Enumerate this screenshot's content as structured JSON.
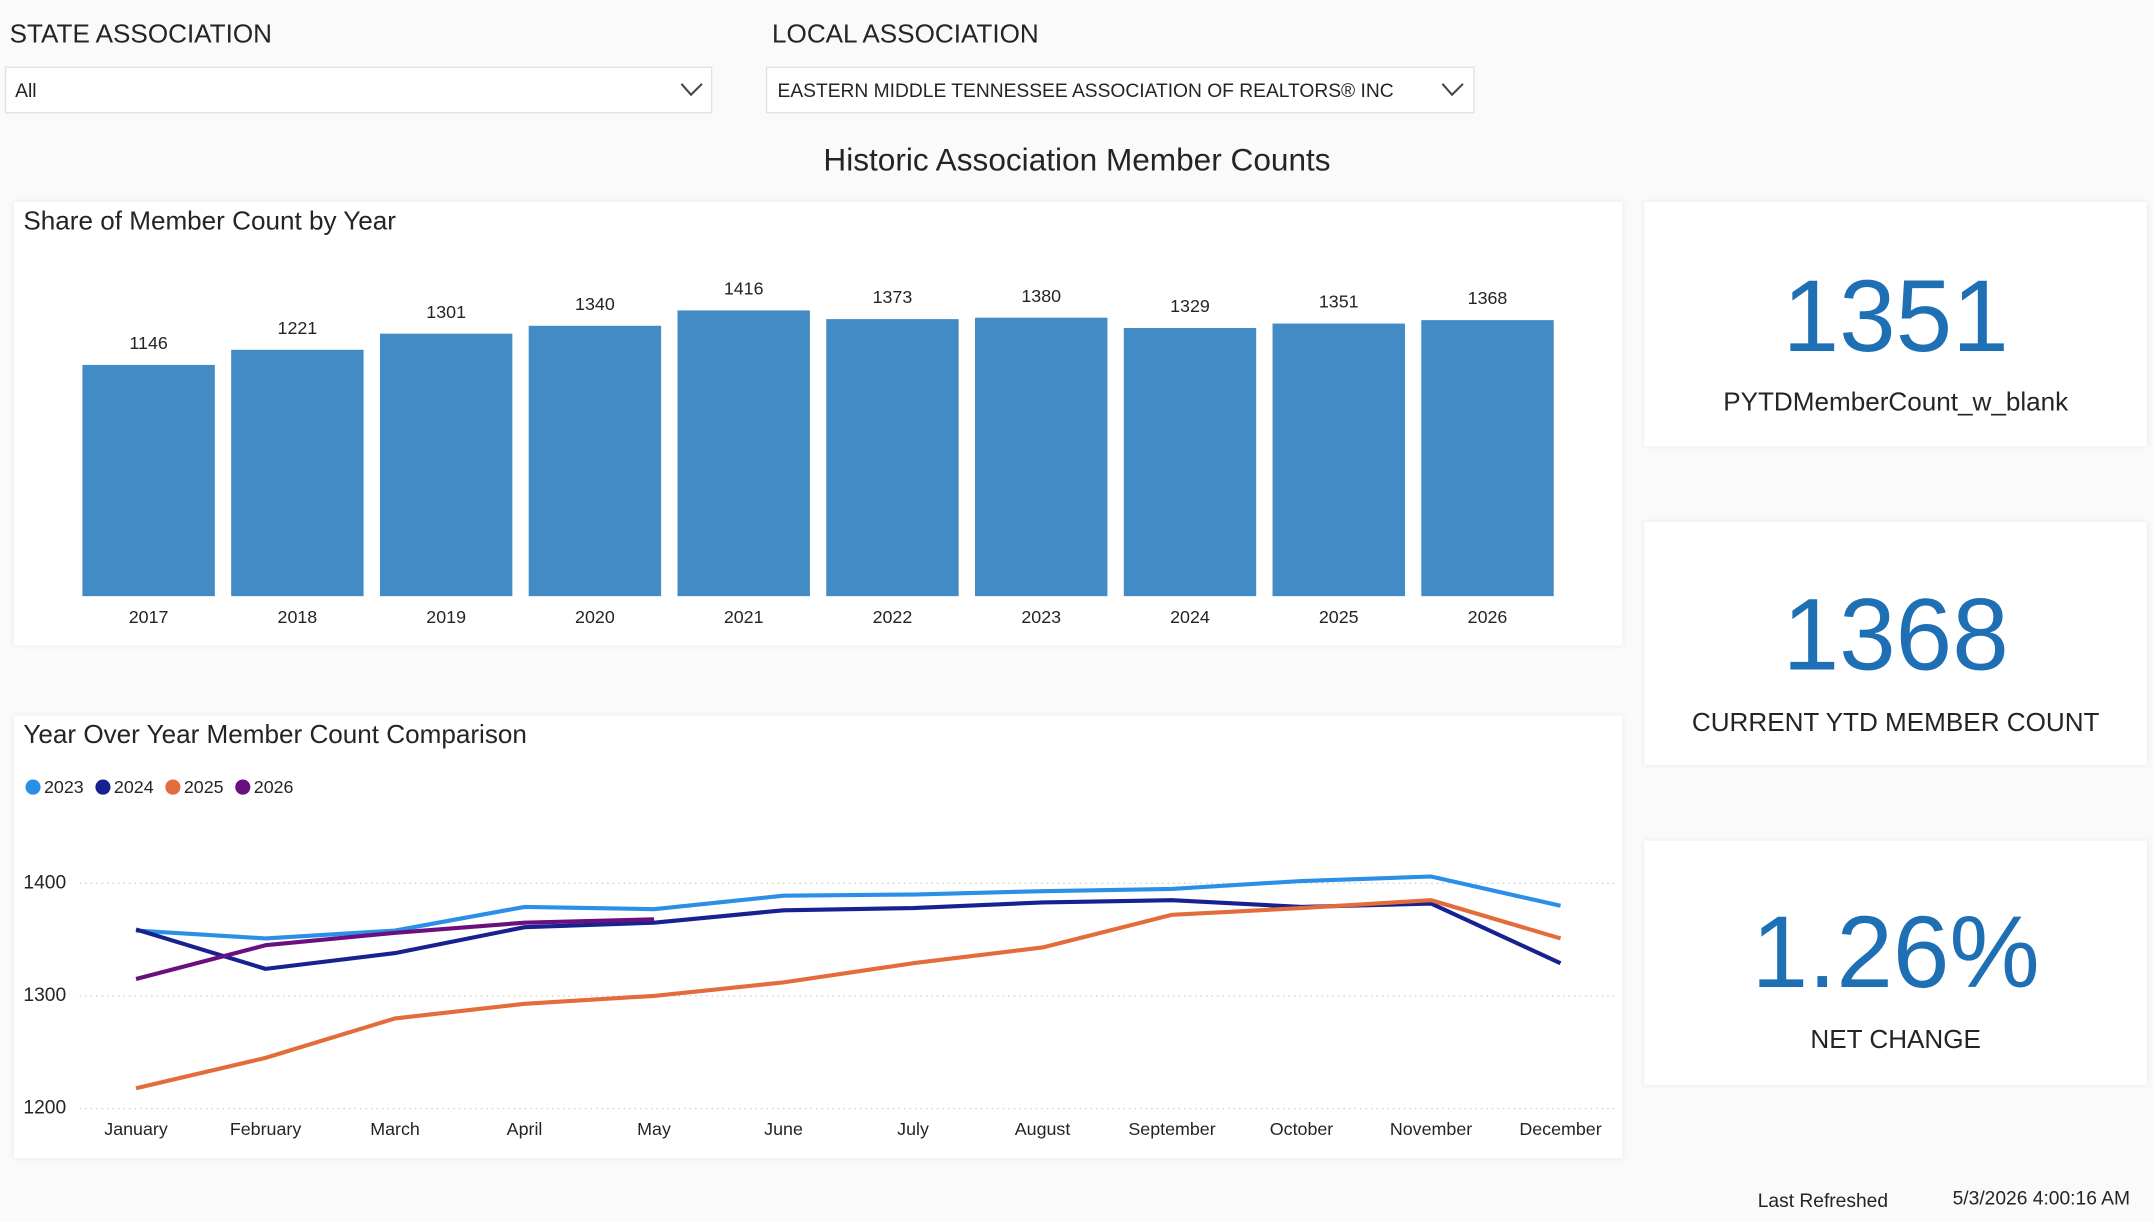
{
  "filters": [
    {
      "label": "STATE ASSOCIATION",
      "value": "All"
    },
    {
      "label": "LOCAL ASSOCIATION",
      "value": "EASTERN MIDDLE TENNESSEE ASSOCIATION OF REALTORS® INC"
    }
  ],
  "header": {
    "title": "Historic Association Member Counts"
  },
  "chart_data": [
    {
      "type": "bar",
      "title": "Share of Member Count by Year",
      "categories": [
        "2017",
        "2018",
        "2019",
        "2020",
        "2021",
        "2022",
        "2023",
        "2024",
        "2025",
        "2026"
      ],
      "values": [
        1146,
        1221,
        1301,
        1340,
        1416,
        1373,
        1380,
        1329,
        1351,
        1368
      ],
      "color": "#428bc4"
    },
    {
      "type": "line",
      "title": "Year Over Year Member Count Comparison",
      "categories": [
        "January",
        "February",
        "March",
        "April",
        "May",
        "June",
        "July",
        "August",
        "September",
        "October",
        "November",
        "December"
      ],
      "series": [
        {
          "name": "2023",
          "color": "#2b8fe8",
          "values": [
            1358,
            1351,
            1358,
            1379,
            1377,
            1389,
            1390,
            1393,
            1395,
            1402,
            1406,
            1380
          ]
        },
        {
          "name": "2024",
          "color": "#17218f",
          "values": [
            1359,
            1324,
            1338,
            1361,
            1365,
            1376,
            1378,
            1383,
            1385,
            1379,
            1382,
            1329
          ]
        },
        {
          "name": "2025",
          "color": "#e46c3a",
          "values": [
            1218,
            1245,
            1280,
            1293,
            1300,
            1312,
            1329,
            1343,
            1372,
            1378,
            1385,
            1351
          ]
        },
        {
          "name": "2026",
          "color": "#6b0f7f",
          "values": [
            1315,
            1345,
            1356,
            1365,
            1368,
            null,
            null,
            null,
            null,
            null,
            null,
            null
          ]
        }
      ],
      "ylim": [
        1200,
        1400
      ],
      "yticks": [
        1200,
        1300,
        1400
      ],
      "grid": true,
      "legend": "top-left"
    }
  ],
  "cards": [
    {
      "value": "1351",
      "label": "PYTDMemberCount_w_blank"
    },
    {
      "value": "1368",
      "label": "CURRENT YTD MEMBER COUNT"
    },
    {
      "value": "1.26%",
      "label": "NET CHANGE"
    }
  ],
  "footer": {
    "label": "Last Refreshed",
    "value": "5/3/2026 4:00:16 AM"
  }
}
